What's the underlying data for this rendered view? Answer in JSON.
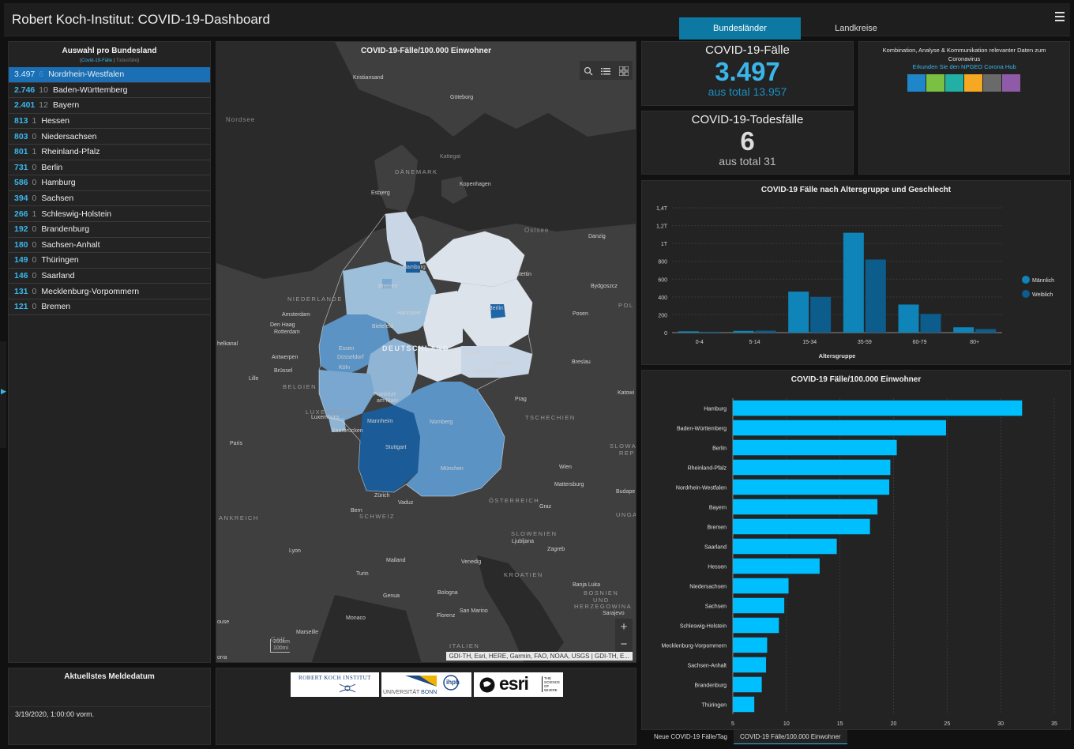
{
  "app": {
    "title": "Robert Koch-Institut: COVID-19-Dashboard",
    "tabs": [
      "Bundesländer",
      "Landkreise"
    ]
  },
  "list_panel": {
    "title": "Auswahl pro Bundesland",
    "sub_cases": "Covid-19-Fälle",
    "sub_sep": " | ",
    "sub_deaths": "Todesfälle",
    "items": [
      {
        "cases": "3.497",
        "deaths": "6",
        "name": "Nordrhein-Westfalen"
      },
      {
        "cases": "2.746",
        "deaths": "10",
        "name": "Baden-Württemberg"
      },
      {
        "cases": "2.401",
        "deaths": "12",
        "name": "Bayern"
      },
      {
        "cases": "813",
        "deaths": "1",
        "name": "Hessen"
      },
      {
        "cases": "803",
        "deaths": "0",
        "name": "Niedersachsen"
      },
      {
        "cases": "801",
        "deaths": "1",
        "name": "Rheinland-Pfalz"
      },
      {
        "cases": "731",
        "deaths": "0",
        "name": "Berlin"
      },
      {
        "cases": "586",
        "deaths": "0",
        "name": "Hamburg"
      },
      {
        "cases": "394",
        "deaths": "0",
        "name": "Sachsen"
      },
      {
        "cases": "266",
        "deaths": "1",
        "name": "Schleswig-Holstein"
      },
      {
        "cases": "192",
        "deaths": "0",
        "name": "Brandenburg"
      },
      {
        "cases": "180",
        "deaths": "0",
        "name": "Sachsen-Anhalt"
      },
      {
        "cases": "149",
        "deaths": "0",
        "name": "Thüringen"
      },
      {
        "cases": "146",
        "deaths": "0",
        "name": "Saarland"
      },
      {
        "cases": "131",
        "deaths": "0",
        "name": "Mecklenburg-Vorpommern"
      },
      {
        "cases": "121",
        "deaths": "0",
        "name": "Bremen"
      }
    ]
  },
  "map": {
    "title": "COVID-19-Fälle/100.000 Einwohner",
    "attribution": "GDI-TH, Esri, HERE, Garmin, FAO, NOAA, USGS | GDI-TH, E...",
    "scale_km": "200km",
    "scale_mi": "100mi",
    "labels": {
      "nordsee": "Nordsee",
      "ostsee": "Ostsee",
      "daenemark": "DÄNEMARK",
      "kattegat": "Kattegat",
      "kristiansand": "Kristiansand",
      "goeteborg": "Göteborg",
      "esbjerg": "Esbjerg",
      "kopenhagen": "Kopenhagen",
      "danzig": "Danzig",
      "stettin": "Stettin",
      "bydgoszcz": "Bydgoszcz",
      "posen": "Posen",
      "pol": "POL",
      "niederlande": "NIEDERLANDE",
      "amsterdam": "Amsterdam",
      "denhaag": "Den Haag",
      "rotterdam": "Rotterdam",
      "antwerpen": "Antwerpen",
      "bruessel": "Brüssel",
      "belgien": "BELGIEN",
      "lille": "Lille",
      "helkanal": "helkanal",
      "luxemburg": "LUXEMBURG",
      "luxemburg_city": "Luxemburg",
      "paris": "Paris",
      "ankreich": "ANKREICH",
      "hamburg": "Hamburg",
      "bremen": "Bremen",
      "hannover": "Hannover",
      "berlin": "Berlin",
      "bielefeld": "Bielefeld",
      "essen": "Essen",
      "duesseldorf": "Düsseldorf",
      "koeln": "Köln",
      "deutschland": "DEUTSCHLAND",
      "leipzig": "Leipzig",
      "dresden": "Dresden",
      "chemnitz": "Chemnitz",
      "frankfurt": "Frankfurt",
      "am_main": "am Main",
      "mannheim": "Mannheim",
      "saarbruecken": "Saarbrücken",
      "nuernberg": "Nürnberg",
      "stuttgart": "Stuttgart",
      "muenchen": "München",
      "breslau": "Breslau",
      "katowice": "Katowi",
      "prag": "Prag",
      "tschechien": "TSCHECHIEN",
      "slowakei": "SLOWA",
      "rep": "REP",
      "wien": "Wien",
      "mattersburg": "Mattersburg",
      "budapest": "Budape",
      "oesterreich": "ÖSTERREICH",
      "graz": "Graz",
      "zuerich": "Zürich",
      "vaduz": "Vaduz",
      "bern": "Bern",
      "schweiz": "SCHWEIZ",
      "unga": "UNGA",
      "slowenien": "SLOWENIEN",
      "ljubljana": "Ljubljana",
      "zagreb": "Zagreb",
      "lyon": "Lyon",
      "mailand": "Mailand",
      "venedig": "Venedig",
      "turin": "Turin",
      "kroatien": "KROATIEN",
      "genua": "Genua",
      "bologna": "Bologna",
      "banja_luka": "Banja Luka",
      "bosnien": "BOSNIEN",
      "und": "UND",
      "herzegowina": "HERZEGOWINA",
      "sarajevo": "Sarajevo",
      "monaco": "Monaco",
      "florenz": "Florenz",
      "san_marino": "San Marino",
      "marseille": "Marseille",
      "italien": "ITALIEN",
      "golf": "Golf",
      "ouse": "ouse",
      "orra": "orra"
    }
  },
  "cases": {
    "title": "COVID-19-Fälle",
    "value": "3.497",
    "total_text": "aus total 13.957"
  },
  "deaths": {
    "title": "COVID-19-Todesfälle",
    "value": "6",
    "total_text": "aus total 31"
  },
  "info": {
    "text": "Kombination, Analyse & Kommunikation relevanter Daten zum Coronavirus",
    "link": "Erkunden Sie den NPGEO Corona Hub",
    "icon_colors": [
      "#1f86c9",
      "#7ac143",
      "#22b0a5",
      "#f7a823",
      "#6a6a6a",
      "#8f5aa8"
    ],
    "icon_names": [
      "hands-icon",
      "people-icon",
      "heart-icon",
      "building-icon",
      "car-icon",
      "house-icon"
    ]
  },
  "age_chart": {
    "title": "COVID-19 Fälle nach Altersgruppe und Geschlecht",
    "xlabel": "Altersgruppe",
    "yticks": [
      "0",
      "200",
      "400",
      "600",
      "800",
      "1T",
      "1,2T",
      "1,4T"
    ],
    "legend_m": "Männlich",
    "legend_w": "Weiblich",
    "color_m": "#0e84b8",
    "color_w": "#0c5c8c"
  },
  "chart_data": [
    {
      "type": "bar",
      "title": "COVID-19 Fälle nach Altersgruppe und Geschlecht",
      "xlabel": "Altersgruppe",
      "ylabel": "",
      "categories": [
        "0-4",
        "5-14",
        "15-34",
        "35-59",
        "60-79",
        "80+"
      ],
      "series": [
        {
          "name": "Männlich",
          "values": [
            15,
            20,
            460,
            1120,
            315,
            60
          ]
        },
        {
          "name": "Weiblich",
          "values": [
            10,
            22,
            400,
            820,
            210,
            40
          ]
        }
      ],
      "ylim": [
        0,
        1400
      ],
      "grid": true,
      "legend": "right"
    },
    {
      "type": "bar",
      "title": "COVID-19 Fälle/100.000 Einwohner",
      "orientation": "horizontal",
      "categories": [
        "Hamburg",
        "Baden-Württemberg",
        "Berlin",
        "Rheinland-Pfalz",
        "Nordrhein-Westfalen",
        "Bayern",
        "Bremen",
        "Saarland",
        "Hessen",
        "Niedersachsen",
        "Sachsen",
        "Schleswig-Holstein",
        "Mecklenburg-Vorpommern",
        "Sachsen-Anhalt",
        "Brandenburg",
        "Thüringen"
      ],
      "values": [
        32.0,
        24.9,
        20.3,
        19.7,
        19.6,
        18.5,
        17.8,
        14.7,
        13.1,
        10.2,
        9.8,
        9.3,
        8.2,
        8.1,
        7.7,
        7.0
      ],
      "xlim": [
        5,
        35
      ],
      "xticks": [
        "5",
        "10",
        "15",
        "20",
        "25",
        "30",
        "35"
      ],
      "grid": true
    }
  ],
  "rate_chart": {
    "title": "COVID-19 Fälle/100.000 Einwohner",
    "color": "#00bfff"
  },
  "bottom_tabs": [
    "Neue COVID-19 Fälle/Tag",
    "COVID-19 Fälle/100.000 Einwohner"
  ],
  "date_panel": {
    "title": "Aktuellstes Meldedatum",
    "value": "3/19/2020, 1:00:00 vorm."
  },
  "logos": {
    "rki": "ROBERT KOCH INSTITUT",
    "bonn_uni": "UNIVERSITÄT",
    "bonn_city": "BONN",
    "ihph": "ihph",
    "esri": "esri",
    "esri_tag1": "THE",
    "esri_tag2": "SCIENCE",
    "esri_tag3": "OF",
    "esri_tag4": "WHERE"
  }
}
